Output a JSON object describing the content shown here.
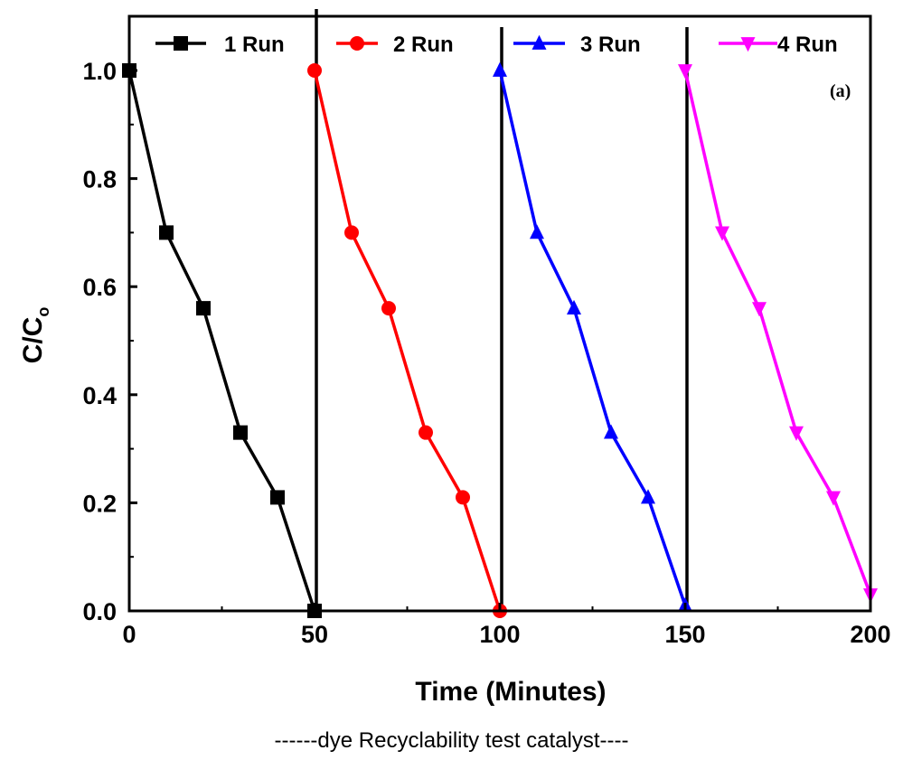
{
  "chart_data": {
    "type": "line",
    "xlabel": "Time (Minutes)",
    "ylabel_main": "C/C",
    "ylabel_sub": "o",
    "panel_label": "(a)",
    "caption": "------dye Recyclability test catalyst----",
    "xlim": [
      0,
      200
    ],
    "ylim": [
      0,
      1.0
    ],
    "xticks": [
      "0",
      "50",
      "100",
      "150",
      "200"
    ],
    "yticks": [
      "0.0",
      "0.2",
      "0.4",
      "0.6",
      "0.8",
      "1.0"
    ],
    "legend_position": "top",
    "vertical_lines": [
      50,
      100,
      150
    ],
    "series": [
      {
        "name": "1 Run",
        "color": "#000000",
        "marker": "square",
        "x": [
          0,
          10,
          20,
          30,
          40,
          50
        ],
        "y": [
          1.0,
          0.7,
          0.56,
          0.33,
          0.21,
          0.0
        ]
      },
      {
        "name": "2 Run",
        "color": "#ff0000",
        "marker": "circle",
        "x": [
          50,
          60,
          70,
          80,
          90,
          100
        ],
        "y": [
          1.0,
          0.7,
          0.56,
          0.33,
          0.21,
          0.0
        ]
      },
      {
        "name": "3 Run",
        "color": "#0000ff",
        "marker": "triangle-up",
        "x": [
          100,
          110,
          120,
          130,
          140,
          150
        ],
        "y": [
          1.0,
          0.7,
          0.56,
          0.33,
          0.21,
          0.01
        ]
      },
      {
        "name": "4 Run",
        "color": "#ff00ff",
        "marker": "triangle-down",
        "x": [
          150,
          160,
          170,
          180,
          190,
          200
        ],
        "y": [
          1.0,
          0.7,
          0.56,
          0.33,
          0.21,
          0.03
        ]
      }
    ]
  }
}
